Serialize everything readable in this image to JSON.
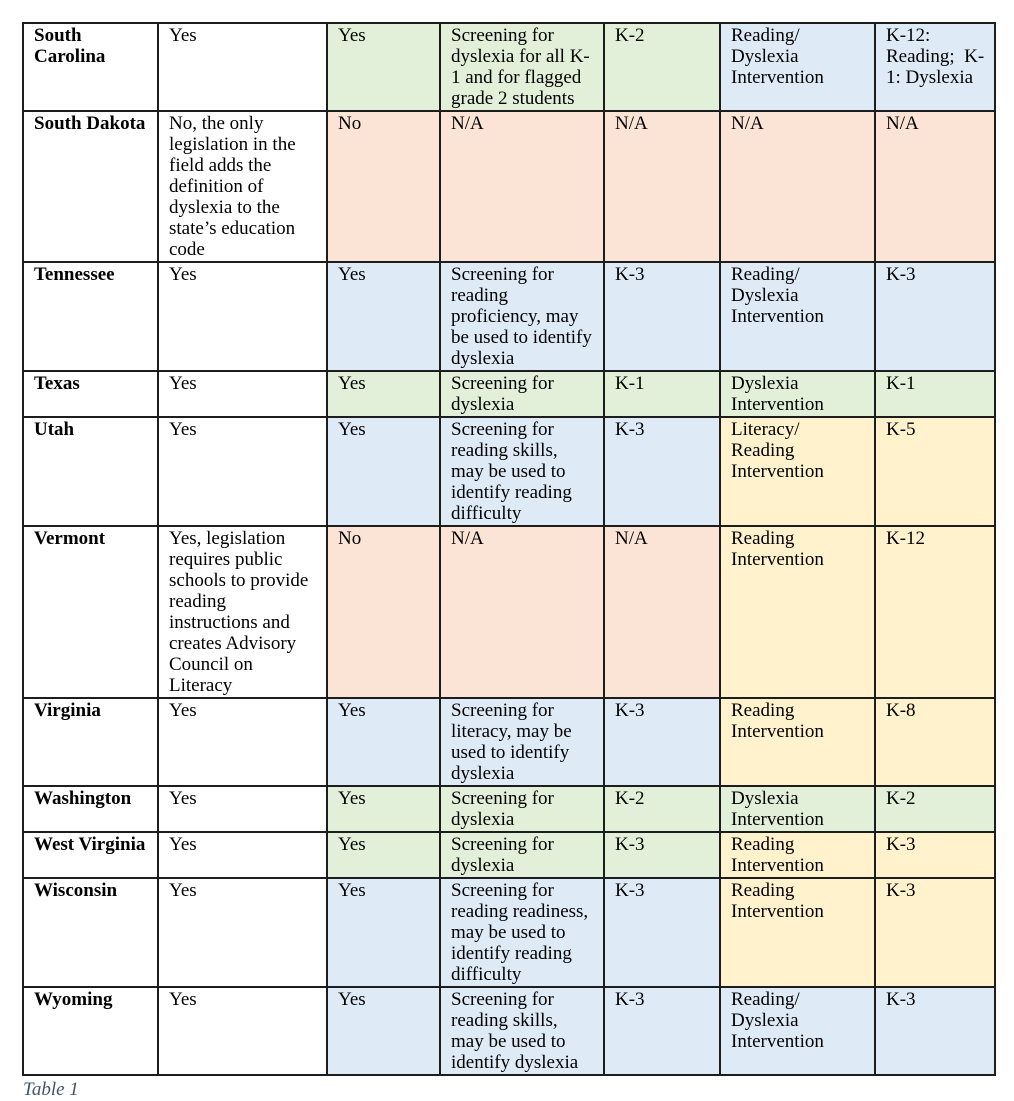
{
  "caption": "Table 1",
  "colors": {
    "white": "#ffffff",
    "green": "#e2efd9",
    "peach": "#fbe4d5",
    "blue": "#deeaf6",
    "yellow": "#fff2cc",
    "border": "#1d1d1d",
    "caption_text": "#44546a"
  },
  "rows": [
    {
      "state": "South Carolina",
      "legislation": "Yes",
      "screening_required": "Yes",
      "screening_desc": "Screening for dyslexia for all K-1 and for flagged grade 2 students",
      "screening_grades": "K-2",
      "intervention": "Reading/ Dyslexia Intervention",
      "intervention_grades": "K-12: Reading;  K-1: Dyslexia",
      "cell_colors": [
        "white",
        "white",
        "green",
        "green",
        "green",
        "blue",
        "blue"
      ]
    },
    {
      "state": "South Dakota",
      "legislation": "No, the only legislation in the field adds the definition of dyslexia to the state’s education code",
      "screening_required": "No",
      "screening_desc": "N/A",
      "screening_grades": "N/A",
      "intervention": "N/A",
      "intervention_grades": "N/A",
      "cell_colors": [
        "white",
        "white",
        "peach",
        "peach",
        "peach",
        "peach",
        "peach"
      ]
    },
    {
      "state": "Tennessee",
      "legislation": "Yes",
      "screening_required": "Yes",
      "screening_desc": "Screening for reading proficiency, may be used to identify dyslexia",
      "screening_grades": "K-3",
      "intervention": "Reading/ Dyslexia Intervention",
      "intervention_grades": "K-3",
      "cell_colors": [
        "white",
        "white",
        "blue",
        "blue",
        "blue",
        "blue",
        "blue"
      ]
    },
    {
      "state": "Texas",
      "legislation": "Yes",
      "screening_required": "Yes",
      "screening_desc": "Screening for dyslexia",
      "screening_grades": "K-1",
      "intervention": "Dyslexia Intervention",
      "intervention_grades": "K-1",
      "cell_colors": [
        "white",
        "white",
        "green",
        "green",
        "green",
        "green",
        "green"
      ]
    },
    {
      "state": "Utah",
      "legislation": "Yes",
      "screening_required": "Yes",
      "screening_desc": "Screening for reading skills, may be used to identify reading difficulty",
      "screening_grades": "K-3",
      "intervention": "Literacy/ Reading Intervention",
      "intervention_grades": "K-5",
      "cell_colors": [
        "white",
        "white",
        "blue",
        "blue",
        "blue",
        "yellow",
        "yellow"
      ]
    },
    {
      "state": "Vermont",
      "legislation": "Yes, legislation requires public schools to provide reading instructions and creates Advisory Council on Literacy",
      "screening_required": "No",
      "screening_desc": "N/A",
      "screening_grades": "N/A",
      "intervention": "Reading Intervention",
      "intervention_grades": "K-12",
      "cell_colors": [
        "white",
        "white",
        "peach",
        "peach",
        "peach",
        "yellow",
        "yellow"
      ]
    },
    {
      "state": "Virginia",
      "legislation": "Yes",
      "screening_required": "Yes",
      "screening_desc": "Screening for literacy, may be used to identify dyslexia",
      "screening_grades": "K-3",
      "intervention": "Reading Intervention",
      "intervention_grades": "K-8",
      "cell_colors": [
        "white",
        "white",
        "blue",
        "blue",
        "blue",
        "yellow",
        "yellow"
      ]
    },
    {
      "state": "Washington",
      "legislation": "Yes",
      "screening_required": "Yes",
      "screening_desc": "Screening for dyslexia",
      "screening_grades": "K-2",
      "intervention": "Dyslexia Intervention",
      "intervention_grades": "K-2",
      "cell_colors": [
        "white",
        "white",
        "green",
        "green",
        "green",
        "green",
        "green"
      ]
    },
    {
      "state": "West Virginia",
      "legislation": "Yes",
      "screening_required": "Yes",
      "screening_desc": "Screening for dyslexia",
      "screening_grades": "K-3",
      "intervention": "Reading Intervention",
      "intervention_grades": "K-3",
      "cell_colors": [
        "white",
        "white",
        "green",
        "green",
        "green",
        "yellow",
        "yellow"
      ]
    },
    {
      "state": "Wisconsin",
      "legislation": "Yes",
      "screening_required": "Yes",
      "screening_desc": "Screening for reading readiness, may be used to identify reading difficulty",
      "screening_grades": "K-3",
      "intervention": "Reading Intervention",
      "intervention_grades": "K-3",
      "cell_colors": [
        "white",
        "white",
        "blue",
        "blue",
        "blue",
        "yellow",
        "yellow"
      ]
    },
    {
      "state": "Wyoming",
      "legislation": "Yes",
      "screening_required": "Yes",
      "screening_desc": "Screening for reading skills, may be used to identify dyslexia",
      "screening_grades": "K-3",
      "intervention": "Reading/ Dyslexia Intervention",
      "intervention_grades": "K-3",
      "cell_colors": [
        "white",
        "white",
        "blue",
        "blue",
        "blue",
        "blue",
        "blue"
      ]
    }
  ]
}
